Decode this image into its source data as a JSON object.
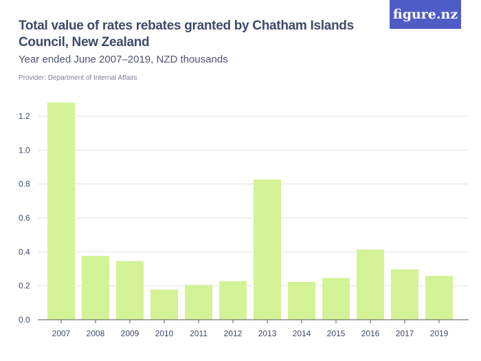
{
  "title": "Total value of rates rebates granted by Chatham Islands Council, New Zealand",
  "subtitle": "Year ended June 2007–2019, NZD thousands",
  "provider": "Provider: Department of Internal Affairs",
  "logo": "figure.nz",
  "colors": {
    "bar": "#d4f296",
    "grid": "#e2e2e2",
    "text": "#3d4a6b",
    "logo_bg": "#4f5cc6"
  },
  "chart_data": {
    "type": "bar",
    "categories": [
      "2007",
      "2008",
      "2009",
      "2010",
      "2011",
      "2012",
      "2013",
      "2014",
      "2015",
      "2016",
      "2017",
      "2019"
    ],
    "values": [
      1.28,
      0.376,
      0.346,
      0.178,
      0.205,
      0.227,
      0.827,
      0.223,
      0.246,
      0.414,
      0.297,
      0.259
    ],
    "yticks": [
      "0.0",
      "0.2",
      "0.4",
      "0.6",
      "0.8",
      "1.0",
      "1.2"
    ],
    "ylim": [
      0,
      1.2
    ],
    "grid": true
  }
}
